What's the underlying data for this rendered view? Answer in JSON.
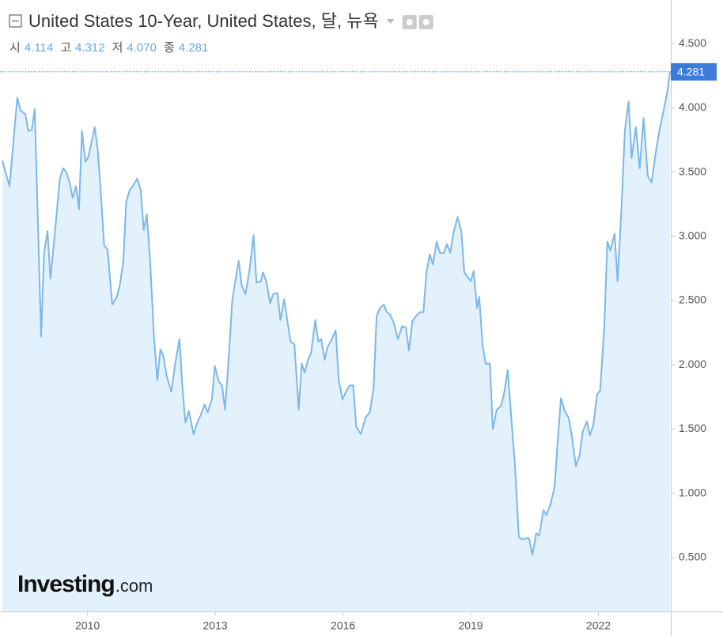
{
  "chart_data": {
    "type": "area",
    "title": "United States 10-Year, United States, 달, 뉴욕",
    "ohlc": [
      {
        "label": "시",
        "value": "4.114"
      },
      {
        "label": "고",
        "value": "4.312"
      },
      {
        "label": "저",
        "value": "4.070"
      },
      {
        "label": "종",
        "value": "4.281"
      }
    ],
    "last_value_label": "4.281",
    "watermark": [
      "Investing",
      ".com"
    ],
    "color": "#7db7e8",
    "fill": "#e2f1fb",
    "xlim": [
      2008.0,
      2023.7
    ],
    "xticks": [
      2010,
      2013,
      2016,
      2019,
      2022
    ],
    "ylim": [
      0.08,
      4.84
    ],
    "yticks": [
      {
        "value": 0.5,
        "label": "0.500"
      },
      {
        "value": 1.0,
        "label": "1.000"
      },
      {
        "value": 1.5,
        "label": "1.500"
      },
      {
        "value": 2.0,
        "label": "2.000"
      },
      {
        "value": 2.5,
        "label": "2.500"
      },
      {
        "value": 3.0,
        "label": "3.000"
      },
      {
        "value": 3.5,
        "label": "3.500"
      },
      {
        "value": 4.0,
        "label": "4.000"
      },
      {
        "value": 4.5,
        "label": "4.500"
      }
    ],
    "x": [
      2008.0,
      2008.17,
      2008.35,
      2008.43,
      2008.54,
      2008.61,
      2008.69,
      2008.76,
      2008.91,
      2008.98,
      2009.06,
      2009.13,
      2009.24,
      2009.35,
      2009.43,
      2009.5,
      2009.58,
      2009.65,
      2009.73,
      2009.8,
      2009.87,
      2009.95,
      2010.02,
      2010.17,
      2010.24,
      2010.32,
      2010.39,
      2010.47,
      2010.58,
      2010.69,
      2010.76,
      2010.84,
      2010.91,
      2010.99,
      2011.06,
      2011.17,
      2011.25,
      2011.32,
      2011.39,
      2011.47,
      2011.56,
      2011.64,
      2011.71,
      2011.78,
      2011.86,
      2011.97,
      2012.06,
      2012.16,
      2012.23,
      2012.3,
      2012.38,
      2012.49,
      2012.58,
      2012.66,
      2012.75,
      2012.82,
      2012.92,
      2012.99,
      2013.08,
      2013.16,
      2013.23,
      2013.32,
      2013.4,
      2013.47,
      2013.55,
      2013.62,
      2013.71,
      2013.81,
      2013.9,
      2013.97,
      2014.07,
      2014.12,
      2014.2,
      2014.29,
      2014.36,
      2014.46,
      2014.53,
      2014.62,
      2014.7,
      2014.77,
      2014.86,
      2014.96,
      2015.03,
      2015.1,
      2015.18,
      2015.25,
      2015.35,
      2015.42,
      2015.49,
      2015.57,
      2015.64,
      2015.74,
      2015.83,
      2015.9,
      2015.99,
      2016.07,
      2016.16,
      2016.24,
      2016.31,
      2016.42,
      2016.53,
      2016.63,
      2016.72,
      2016.79,
      2016.87,
      2016.96,
      2017.03,
      2017.11,
      2017.2,
      2017.29,
      2017.39,
      2017.48,
      2017.55,
      2017.63,
      2017.72,
      2017.81,
      2017.89,
      2017.96,
      2018.04,
      2018.11,
      2018.2,
      2018.28,
      2018.37,
      2018.44,
      2018.52,
      2018.59,
      2018.69,
      2018.78,
      2018.85,
      2018.93,
      2019.0,
      2019.07,
      2019.15,
      2019.2,
      2019.28,
      2019.35,
      2019.45,
      2019.52,
      2019.61,
      2019.71,
      2019.78,
      2019.87,
      2019.97,
      2020.04,
      2020.13,
      2020.21,
      2020.3,
      2020.37,
      2020.45,
      2020.54,
      2020.61,
      2020.71,
      2020.78,
      2020.87,
      2020.97,
      2021.04,
      2021.12,
      2021.21,
      2021.3,
      2021.38,
      2021.47,
      2021.56,
      2021.63,
      2021.73,
      2021.8,
      2021.88,
      2021.97,
      2022.04,
      2022.14,
      2022.21,
      2022.28,
      2022.38,
      2022.45,
      2022.54,
      2022.62,
      2022.71,
      2022.78,
      2022.88,
      2022.97,
      2023.06,
      2023.16,
      2023.25,
      2023.34,
      2023.43,
      2023.53,
      2023.62,
      2023.68
    ],
    "values": [
      3.59,
      3.39,
      4.08,
      3.98,
      3.95,
      3.82,
      3.83,
      3.99,
      2.22,
      2.87,
      3.04,
      2.67,
      3.05,
      3.45,
      3.53,
      3.5,
      3.42,
      3.3,
      3.39,
      3.21,
      3.82,
      3.58,
      3.62,
      3.85,
      3.67,
      3.3,
      2.93,
      2.9,
      2.47,
      2.53,
      2.62,
      2.81,
      3.27,
      3.36,
      3.39,
      3.45,
      3.36,
      3.05,
      3.17,
      2.81,
      2.22,
      1.88,
      2.12,
      2.07,
      1.91,
      1.79,
      2.01,
      2.2,
      1.82,
      1.55,
      1.64,
      1.46,
      1.55,
      1.61,
      1.69,
      1.63,
      1.73,
      1.99,
      1.87,
      1.84,
      1.65,
      2.07,
      2.5,
      2.65,
      2.81,
      2.62,
      2.55,
      2.75,
      3.01,
      2.64,
      2.65,
      2.72,
      2.65,
      2.48,
      2.55,
      2.56,
      2.35,
      2.51,
      2.33,
      2.18,
      2.16,
      1.65,
      2.01,
      1.94,
      2.04,
      2.09,
      2.35,
      2.18,
      2.2,
      2.04,
      2.14,
      2.2,
      2.27,
      1.88,
      1.73,
      1.79,
      1.84,
      1.84,
      1.52,
      1.46,
      1.59,
      1.63,
      1.82,
      2.38,
      2.44,
      2.47,
      2.41,
      2.39,
      2.32,
      2.2,
      2.3,
      2.29,
      2.11,
      2.34,
      2.38,
      2.41,
      2.41,
      2.72,
      2.86,
      2.78,
      2.96,
      2.87,
      2.87,
      2.94,
      2.87,
      3.02,
      3.15,
      3.04,
      2.72,
      2.68,
      2.65,
      2.73,
      2.44,
      2.53,
      2.15,
      2.01,
      2.01,
      1.5,
      1.65,
      1.68,
      1.77,
      1.96,
      1.52,
      1.22,
      0.66,
      0.64,
      0.65,
      0.65,
      0.52,
      0.69,
      0.67,
      0.87,
      0.83,
      0.91,
      1.05,
      1.39,
      1.74,
      1.64,
      1.59,
      1.44,
      1.21,
      1.3,
      1.48,
      1.56,
      1.45,
      1.53,
      1.77,
      1.8,
      2.31,
      2.96,
      2.89,
      3.02,
      2.65,
      3.21,
      3.82,
      4.05,
      3.61,
      3.85,
      3.53,
      3.92,
      3.47,
      3.42,
      3.64,
      3.82,
      3.98,
      4.13,
      4.281
    ]
  }
}
